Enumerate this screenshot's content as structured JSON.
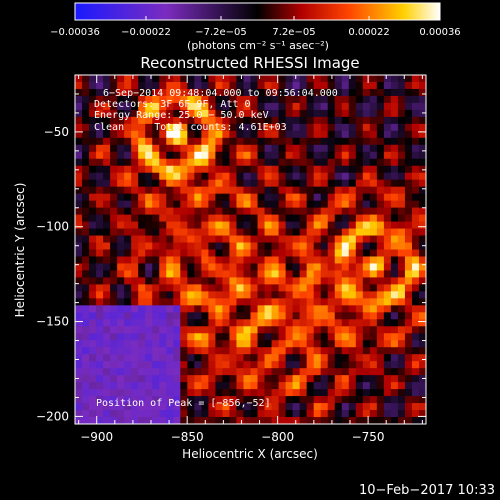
{
  "chart_data": {
    "type": "heatmap",
    "title": "Reconstructed RHESSI Image",
    "xlabel": "Heliocentric X (arcsec)",
    "ylabel": "Heliocentric Y (arcsec)",
    "xlim": [
      -912,
      -718
    ],
    "ylim": [
      -204,
      -20
    ],
    "x_ticks": [
      {
        "value": -900,
        "label": "−900"
      },
      {
        "value": -850,
        "label": "−850"
      },
      {
        "value": -800,
        "label": "−800"
      },
      {
        "value": -750,
        "label": "−750"
      }
    ],
    "y_ticks": [
      {
        "value": -50,
        "label": "−50"
      },
      {
        "value": -100,
        "label": "−100"
      },
      {
        "value": -150,
        "label": "−150"
      },
      {
        "value": -200,
        "label": "−200"
      }
    ],
    "colorbar": {
      "range": [
        -0.00036,
        0.00036
      ],
      "tick_values": [
        -0.00036,
        -0.00022,
        -7.2e-05,
        7.2e-05,
        0.00022,
        0.00036
      ],
      "tick_labels": [
        "−0.00036",
        "−0.00022",
        "−7.2e−05",
        "7.2e−05",
        "0.00022",
        "0.00036"
      ],
      "unit_label": "(photons cm⁻² s⁻¹ asec⁻²)",
      "colors": [
        "#1a1aff",
        "#7b2cbf",
        "#000000",
        "#b00000",
        "#ff4500",
        "#ffd000",
        "#ffffff"
      ]
    },
    "annotations": [
      "6−Sep−2014 09:48:04.000 to 09:56:04.000",
      "Detectors: 3F 6F 9F, Att 0",
      "Energy Range: 25.0 − 50.0 keV",
      "Clean     Total counts: 4.61E+03"
    ],
    "peak_label": "Position of Peak = [−856,−52]",
    "peak": {
      "x": -856,
      "y": -52
    },
    "footer": "10−Feb−2017 10:33"
  }
}
